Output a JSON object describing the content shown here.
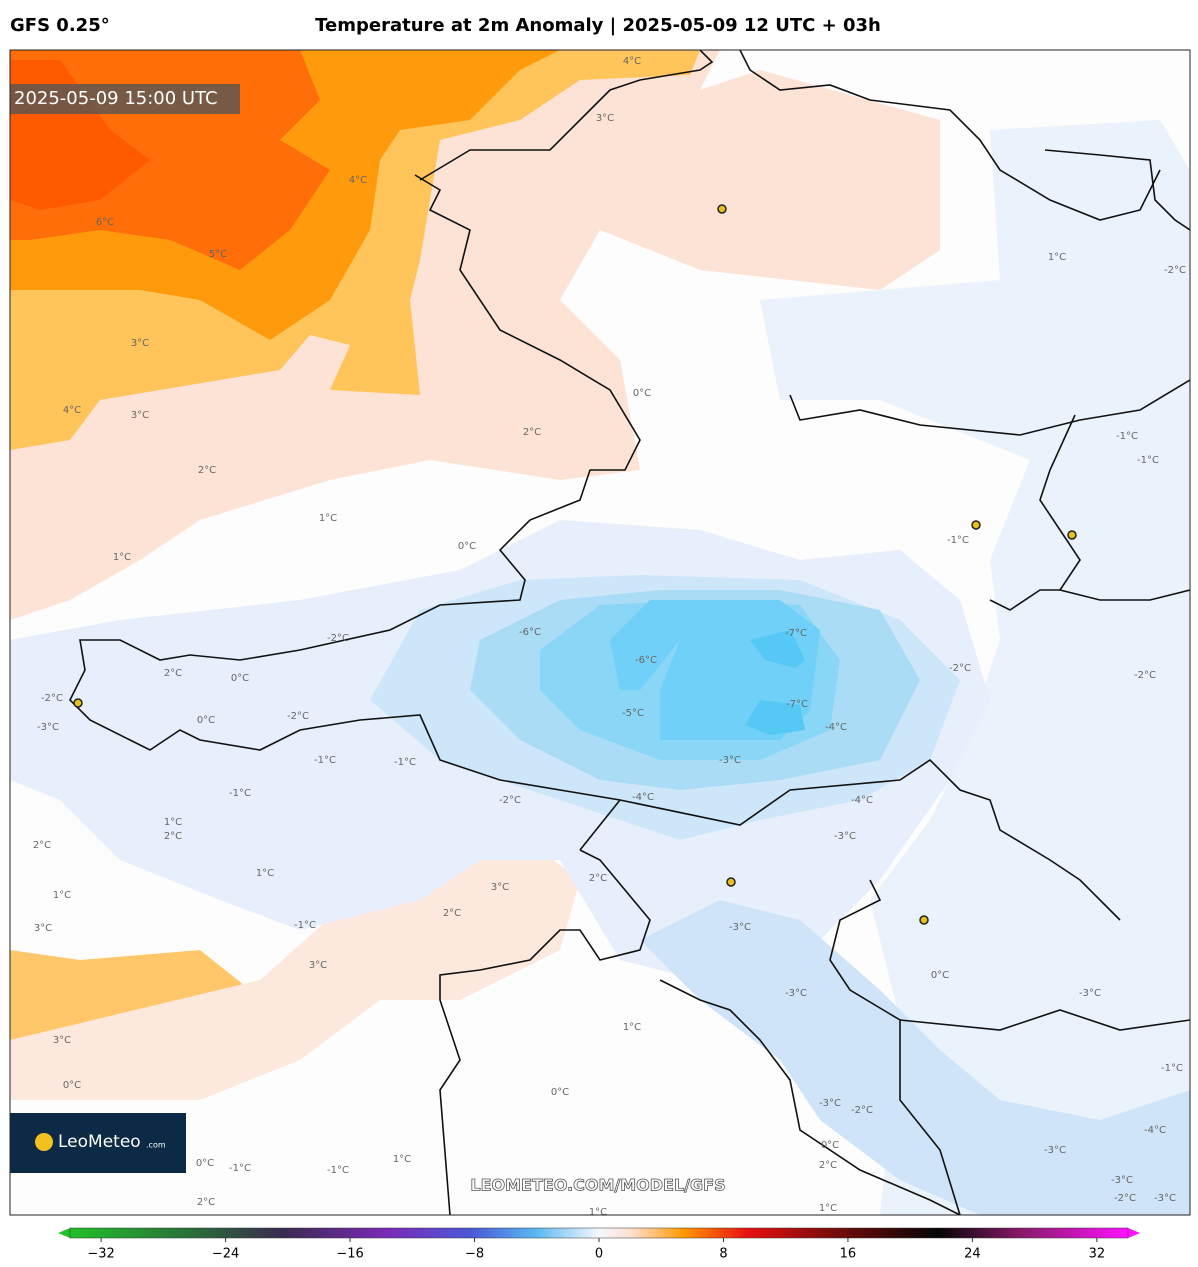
{
  "header": {
    "model": "GFS 0.25°",
    "title": "Temperature at 2m Anomaly | 2025-05-09 12 UTC + 03h"
  },
  "map": {
    "timestamp": "2025-05-09 15:00 UTC",
    "watermark": "LEOMETEO.COM/MODEL/GFS",
    "logo": {
      "brand": "LeoMeteo",
      "suffix": ".com"
    },
    "contour_labels": [
      "4°C",
      "3°C",
      "4°C",
      "6°C",
      "5°C",
      "3°C",
      "4°C",
      "3°C",
      "2°C",
      "2°C",
      "1°C",
      "0°C",
      "1°C",
      "0°C",
      "1°C",
      "-2°C",
      "-1°C",
      "-1°C",
      "-1°C",
      "-6°C",
      "-7°C",
      "-6°C",
      "-7°C",
      "-5°C",
      "-4°C",
      "-2°C",
      "-2°C",
      "-2°C",
      "-3°C",
      "-4°C",
      "-4°C",
      "-3°C",
      "-2°C",
      "-1°C",
      "-1°C",
      "-1°C",
      "-2°C",
      "0°C",
      "0°C",
      "2°C",
      "-2°C",
      "-3°C",
      "-3°C",
      "-3°C",
      "0°C",
      "-3°C",
      "2°C",
      "3°C",
      "2°C",
      "-1°C",
      "3°C",
      "3°C",
      "2°C",
      "1°C",
      "1°C",
      "1°C",
      "2°C",
      "1°C",
      "3°C",
      "0°C",
      "0°C",
      "-3°C",
      "-2°C",
      "0°C",
      "2°C",
      "-3°C",
      "-4°C",
      "-3°C",
      "-2°C",
      "-3°C",
      "-1°C",
      "0°C",
      "-1°C",
      "-1°C",
      "1°C",
      "2°C",
      "1°C",
      "1°C"
    ]
  },
  "colorbar": {
    "lim": [
      -34,
      34
    ],
    "ticks": [
      {
        "value": -32,
        "label": "−32"
      },
      {
        "value": -24,
        "label": "−24"
      },
      {
        "value": -16,
        "label": "−16"
      },
      {
        "value": -8,
        "label": "−8"
      },
      0,
      8,
      16,
      24,
      32
    ]
  }
}
